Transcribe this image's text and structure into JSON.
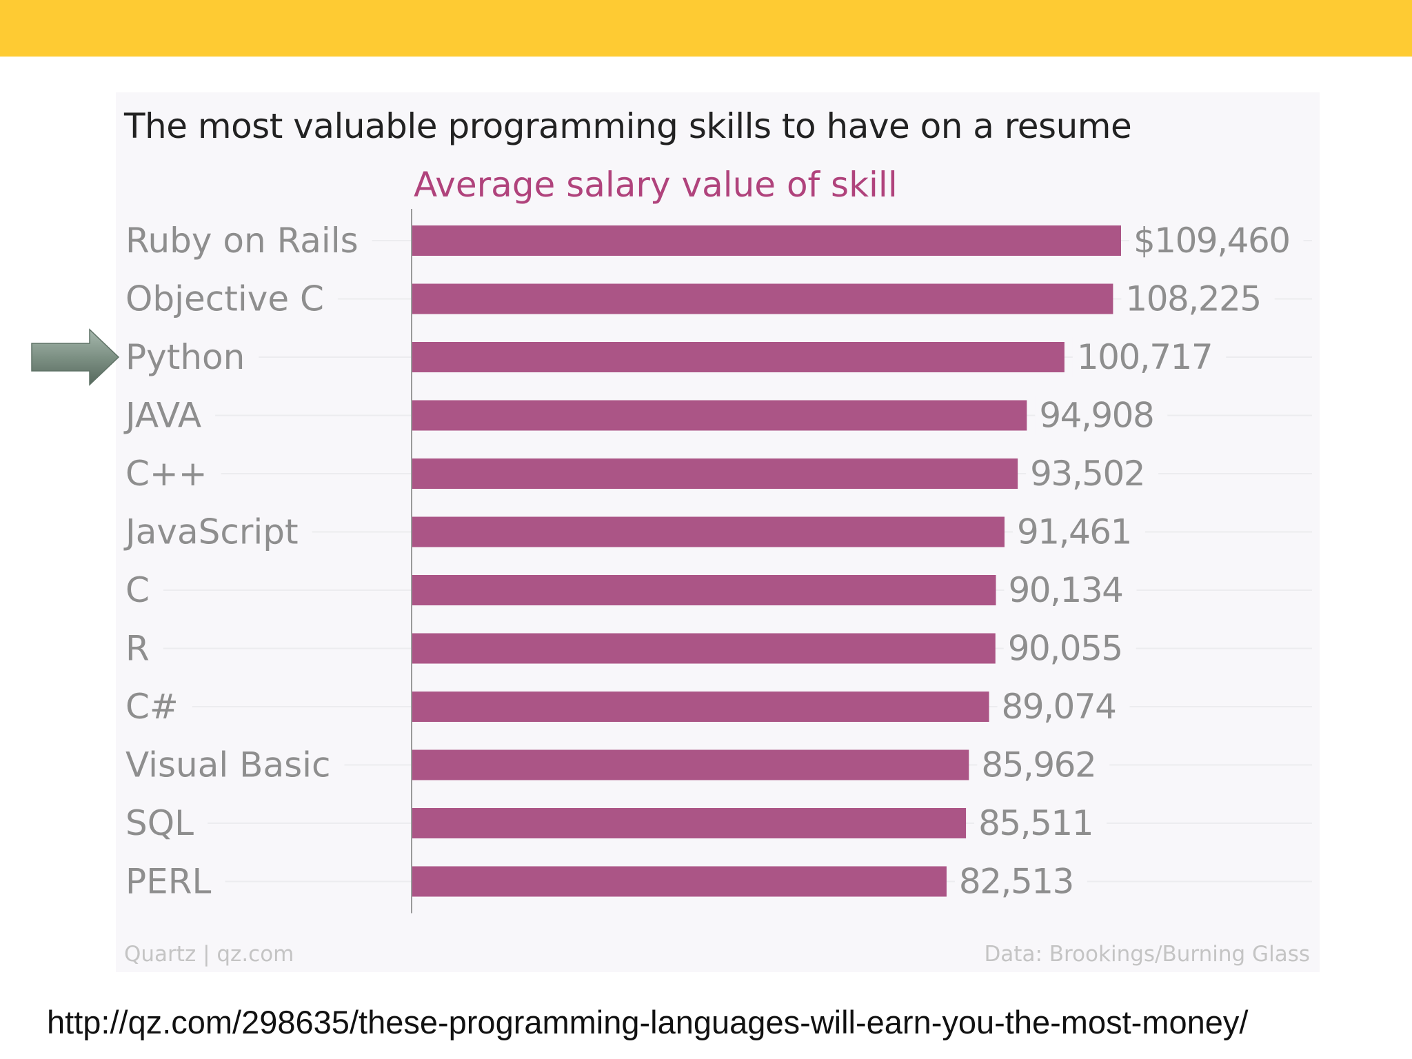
{
  "colors": {
    "top_band": "#FECB33",
    "bar": "#AB5586",
    "subtitle": "#B0437C",
    "label": "#8e8e8e",
    "pointer_arrow": "#7D9184"
  },
  "chart_data": {
    "type": "bar",
    "orientation": "horizontal",
    "title": "The most valuable programming skills to have on a resume",
    "subtitle": "Average salary value of skill",
    "categories": [
      "Ruby on Rails",
      "Objective C",
      "Python",
      "JAVA",
      "C++",
      "JavaScript",
      "C",
      "R",
      "C#",
      "Visual Basic",
      "SQL",
      "PERL"
    ],
    "values": [
      109460,
      108225,
      100717,
      94908,
      93502,
      91461,
      90134,
      90055,
      89074,
      85962,
      85511,
      82513
    ],
    "value_labels": [
      "$109,460",
      "108,225",
      "100,717",
      "94,908",
      "93,502",
      "91,461",
      "90,134",
      "90,055",
      "89,074",
      "85,962",
      "85,511",
      "82,513"
    ],
    "xlim": [
      0,
      120000
    ],
    "grid": false,
    "highlighted_category": "Python"
  },
  "footer": {
    "credit": "Quartz | qz.com",
    "source": "Data: Brookings/Burning Glass"
  },
  "pointer": {
    "icon": "right-arrow-icon"
  },
  "source_url": "http://qz.com/298635/these-programming-languages-will-earn-you-the-most-money/"
}
